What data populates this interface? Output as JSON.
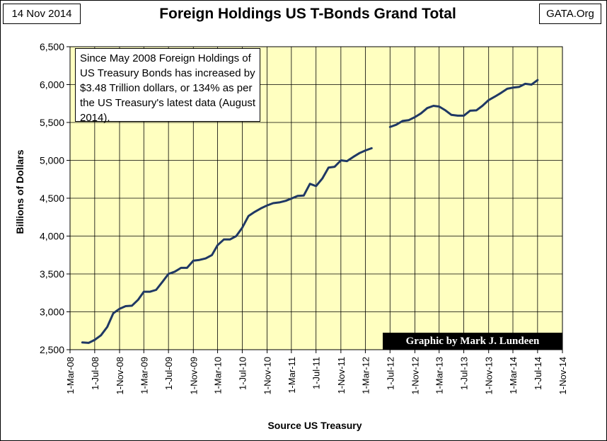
{
  "header": {
    "date": "14 Nov 2014",
    "source": "GATA.Org"
  },
  "chart_data": {
    "type": "line",
    "title": "Foreign Holdings US T-Bonds Grand Total",
    "xlabel": "Source US Treasury",
    "ylabel": "Billions of Dollars",
    "ylim": [
      2500,
      6500
    ],
    "y_ticks": [
      2500,
      3000,
      3500,
      4000,
      4500,
      5000,
      5500,
      6000,
      6500
    ],
    "y_tick_labels": [
      "2,500",
      "3,000",
      "3,500",
      "4,000",
      "4,500",
      "5,000",
      "5,500",
      "6,000",
      "6,500"
    ],
    "x_range": [
      "2008-03-01",
      "2014-11-01"
    ],
    "x_ticks": [
      "2008-03-01",
      "2008-07-01",
      "2008-11-01",
      "2009-03-01",
      "2009-07-01",
      "2009-11-01",
      "2010-03-01",
      "2010-07-01",
      "2010-11-01",
      "2011-03-01",
      "2011-07-01",
      "2011-11-01",
      "2012-03-01",
      "2012-07-01",
      "2012-11-01",
      "2013-03-01",
      "2013-07-01",
      "2013-11-01",
      "2014-03-01",
      "2014-07-01",
      "2014-11-01"
    ],
    "x_tick_labels": [
      "1-Mar-08",
      "1-Jul-08",
      "1-Nov-08",
      "1-Mar-09",
      "1-Jul-09",
      "1-Nov-09",
      "1-Mar-10",
      "1-Jul-10",
      "1-Nov-10",
      "1-Mar-11",
      "1-Jul-11",
      "1-Nov-11",
      "1-Mar-12",
      "1-Jul-12",
      "1-Nov-12",
      "1-Mar-13",
      "1-Jul-13",
      "1-Nov-13",
      "1-Mar-14",
      "1-Jul-14",
      "1-Nov-14"
    ],
    "grid": true,
    "plot_color": "#ffffc0",
    "line_color": "#1f3864",
    "series": [
      {
        "segments": [
          [
            [
              "2008-05-01",
              2595
            ],
            [
              "2008-06-01",
              2590
            ],
            [
              "2008-07-01",
              2630
            ],
            [
              "2008-08-01",
              2690
            ],
            [
              "2008-09-01",
              2800
            ],
            [
              "2008-10-01",
              2980
            ],
            [
              "2008-11-01",
              3040
            ],
            [
              "2008-12-01",
              3075
            ],
            [
              "2009-01-01",
              3080
            ],
            [
              "2009-02-01",
              3160
            ],
            [
              "2009-03-01",
              3265
            ],
            [
              "2009-04-01",
              3265
            ],
            [
              "2009-05-01",
              3290
            ],
            [
              "2009-06-01",
              3395
            ],
            [
              "2009-07-01",
              3500
            ],
            [
              "2009-08-01",
              3530
            ],
            [
              "2009-09-01",
              3580
            ],
            [
              "2009-10-01",
              3580
            ],
            [
              "2009-11-01",
              3675
            ],
            [
              "2009-12-01",
              3685
            ],
            [
              "2010-01-01",
              3705
            ],
            [
              "2010-02-01",
              3750
            ],
            [
              "2010-03-01",
              3880
            ],
            [
              "2010-04-01",
              3955
            ],
            [
              "2010-05-01",
              3955
            ],
            [
              "2010-06-01",
              4000
            ],
            [
              "2010-07-01",
              4110
            ],
            [
              "2010-08-01",
              4265
            ],
            [
              "2010-09-01",
              4320
            ],
            [
              "2010-10-01",
              4365
            ],
            [
              "2010-11-01",
              4405
            ],
            [
              "2010-12-01",
              4435
            ],
            [
              "2011-01-01",
              4445
            ],
            [
              "2011-02-01",
              4465
            ],
            [
              "2011-03-01",
              4495
            ],
            [
              "2011-04-01",
              4530
            ],
            [
              "2011-05-01",
              4535
            ],
            [
              "2011-06-01",
              4690
            ],
            [
              "2011-07-01",
              4660
            ],
            [
              "2011-08-01",
              4760
            ],
            [
              "2011-09-01",
              4905
            ],
            [
              "2011-10-01",
              4915
            ],
            [
              "2011-11-01",
              5000
            ],
            [
              "2011-12-01",
              4990
            ],
            [
              "2012-01-01",
              5045
            ],
            [
              "2012-02-01",
              5095
            ],
            [
              "2012-03-01",
              5130
            ],
            [
              "2012-04-01",
              5160
            ]
          ],
          [
            [
              "2012-07-01",
              5440
            ],
            [
              "2012-08-01",
              5470
            ],
            [
              "2012-09-01",
              5520
            ],
            [
              "2012-10-01",
              5530
            ],
            [
              "2012-11-01",
              5570
            ],
            [
              "2012-12-01",
              5620
            ],
            [
              "2013-01-01",
              5690
            ],
            [
              "2013-02-01",
              5720
            ],
            [
              "2013-03-01",
              5710
            ],
            [
              "2013-04-01",
              5660
            ],
            [
              "2013-05-01",
              5600
            ],
            [
              "2013-06-01",
              5590
            ],
            [
              "2013-07-01",
              5590
            ],
            [
              "2013-08-01",
              5655
            ],
            [
              "2013-09-01",
              5660
            ],
            [
              "2013-10-01",
              5720
            ],
            [
              "2013-11-01",
              5795
            ],
            [
              "2013-12-01",
              5840
            ],
            [
              "2014-01-01",
              5890
            ],
            [
              "2014-02-01",
              5945
            ],
            [
              "2014-03-01",
              5960
            ],
            [
              "2014-04-01",
              5970
            ],
            [
              "2014-05-01",
              6010
            ],
            [
              "2014-06-01",
              6000
            ],
            [
              "2014-07-01",
              6060
            ]
          ]
        ]
      }
    ],
    "annotation": "Since May 2008 Foreign Holdings of US Treasury Bonds has increased by $3.48 Trillion dollars, or 134% as per the US Treasury's latest data (August 2014).",
    "credit": "Graphic by Mark J. Lundeen"
  }
}
